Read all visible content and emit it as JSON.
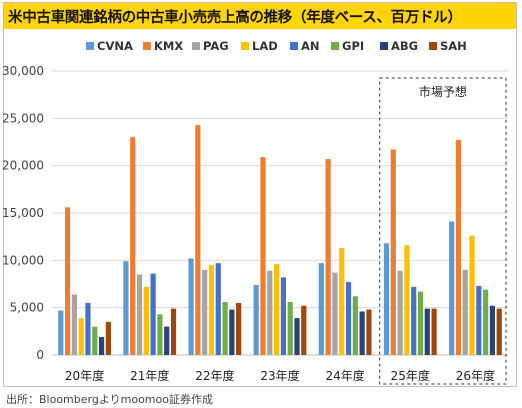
{
  "title": "米中古車関連銘柄の中古車小売売上高の推移（年度ベース、百万ドル）",
  "source": "出所：Bloombergよりmoomoo証券作成",
  "chart_data": {
    "type": "bar",
    "categories": [
      "20年度",
      "21年度",
      "22年度",
      "23年度",
      "24年度",
      "25年度",
      "26年度"
    ],
    "ylim": [
      0,
      30000
    ],
    "yticks": [
      0,
      5000,
      10000,
      15000,
      20000,
      25000,
      30000
    ],
    "ytick_labels": [
      "0",
      "5,000",
      "10,000",
      "15,000",
      "20,000",
      "25,000",
      "30,000"
    ],
    "grid": true,
    "legend_position": "top",
    "series": [
      {
        "name": "CVNA",
        "color": "#5b9bd5",
        "values": [
          4700,
          9900,
          10200,
          7400,
          9700,
          11800,
          14100
        ]
      },
      {
        "name": "KMX",
        "color": "#ed7d31",
        "values": [
          15600,
          23000,
          24300,
          20900,
          20700,
          21700,
          22700
        ]
      },
      {
        "name": "PAG",
        "color": "#a5a5a5",
        "values": [
          6400,
          8500,
          9000,
          8900,
          8700,
          8900,
          9000
        ]
      },
      {
        "name": "LAD",
        "color": "#ffc000",
        "values": [
          3900,
          7200,
          9500,
          9600,
          11300,
          11600,
          12600
        ]
      },
      {
        "name": "AN",
        "color": "#4472c4",
        "values": [
          5500,
          8600,
          9700,
          8200,
          7700,
          7200,
          7300
        ]
      },
      {
        "name": "GPI",
        "color": "#70ad47",
        "values": [
          3000,
          4300,
          5600,
          5600,
          6200,
          6700,
          6900
        ]
      },
      {
        "name": "ABG",
        "color": "#264478",
        "values": [
          1900,
          3000,
          4800,
          3900,
          4600,
          4900,
          5200
        ]
      },
      {
        "name": "SAH",
        "color": "#9e480e",
        "values": [
          3500,
          4900,
          5500,
          5200,
          4800,
          4900,
          4900
        ]
      }
    ],
    "annotation": {
      "label": "市場予想",
      "applies_to": [
        "25年度",
        "26年度"
      ]
    }
  }
}
